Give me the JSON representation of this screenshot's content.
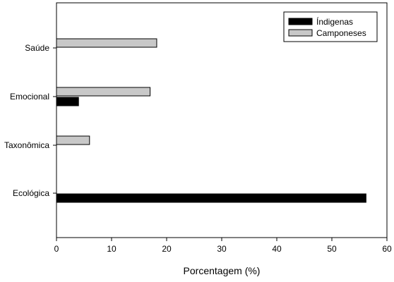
{
  "chart_data": {
    "type": "bar",
    "orientation": "horizontal",
    "categories": [
      "Saúde",
      "Emocional",
      "Taxonômica",
      "Ecológica"
    ],
    "series": [
      {
        "name": "Índigenas",
        "color": "#000000",
        "values": [
          0,
          4,
          0,
          56.2
        ]
      },
      {
        "name": "Camponeses",
        "color": "#c8c8c8",
        "values": [
          18.2,
          17,
          6,
          0
        ]
      }
    ],
    "xlabel": "Porcentagem (%)",
    "ylabel": "",
    "xlim": [
      0,
      60
    ],
    "xticks": [
      "0",
      "10",
      "20",
      "30",
      "40",
      "50",
      "60"
    ],
    "grid": false,
    "legend_position": "top-right"
  }
}
